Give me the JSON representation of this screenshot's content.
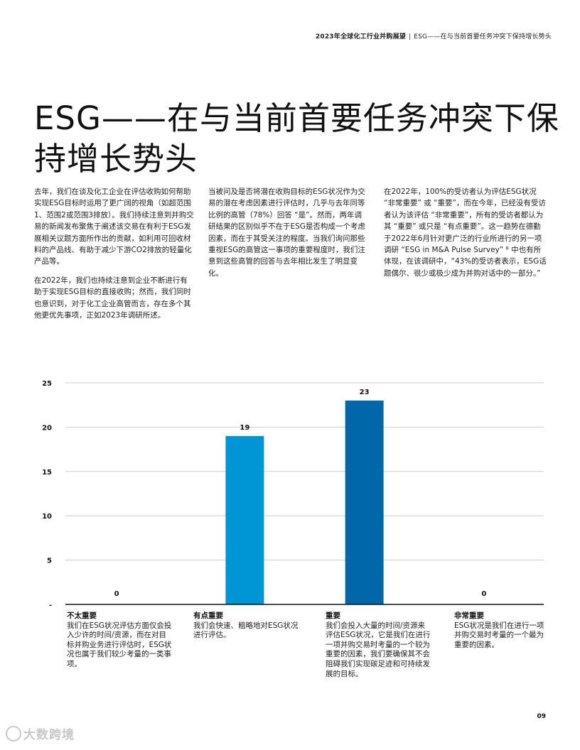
{
  "header": {
    "report": "2023年全球化工行业并购展望",
    "separator": "|",
    "section": "ESG——在与当前首要任务冲突下保持增长势头"
  },
  "title": "ESG——在与当前首要任务冲突下保持增长势头",
  "columns": [
    [
      "去年，我们在谈及化工企业在评估收购如何帮助实现ESG目标时运用了更广阔的视角（如超范围1、范围2或范围3排放）。我们持续注意到并购交易的新闻发布聚焦于阐述该交易在有利于ESG发展相关议题方面所作出的贡献，如利用可回收材料的产品线、有助于减少下游CO2排放的轻量化产品等。",
      "在2022年，我们也持续注意到企业不断进行有助于实现ESG目标的直接收购；然而，我们同时也意识到，对于化工企业高管而言，存在多个其他更优先事项，正如2023年调研所述。"
    ],
    [
      "当被问及是否将潜在收购目标的ESG状况作为交易的潜在考虑因素进行评估时，几乎与去年同等比例的高管（78%）回答 “是”。然而，两年调研结果的区别似乎不在于ESG是否构成一个考虑因素，而在于其受关注的程度。当我们询问那些重视ESG的高管这一事项的重要程度时，我们注意到这些高管的回答与去年相比发生了明显变化。"
    ],
    [
      "在2022年，100%的受访者认为评估ESG状况 “非常重要” 或 “重要”，而在今年，已经没有受访者认为该评估 “非常重要”，所有的受访者都认为其 “重要” 或只是 “有点重要”。这一趋势在德勤于2022年6月针对更广泛的行业所进行的另一项调研 “ESG in M&A Pulse Survey” ⁸ 中也有所体现，在该调研中，“43%的受访者表示，ESG话题偶尔、很少或极少成为并购对话中的一部分。”"
    ]
  ],
  "chart_data": {
    "type": "bar",
    "categories": [
      "不太重要",
      "有点重要",
      "重要",
      "非常重要"
    ],
    "values": [
      0,
      19,
      23,
      0
    ],
    "value_labels": [
      "0",
      "19",
      "23",
      "0"
    ],
    "ylim": [
      0,
      25
    ],
    "yticks": [
      "25",
      "20",
      "15",
      "10",
      "5",
      "-"
    ],
    "grid": true,
    "bar_colors": [
      "#0096d6",
      "#0096d6",
      "#0068a8",
      "#0068a8"
    ],
    "category_descriptions": [
      "我们在ESG状况评估方面仅会投入少许的时间/资源，而在对目标并购业务进行评估时，ESG状况也属于我们较少考量的一类事项。",
      "我们会快速、粗略地对ESG状况进行评估。",
      "我们会投入大量的时间/资源来评估ESG状况，它是我们在进行一项并购交易时考量的一个较为重要的因素，我们要确保其不会阻碍我们实现碳足迹和可持续发展的目标。",
      "ESG状况是我们在进行一项并购交易时考量的一个最为重要的因素。"
    ]
  },
  "colors": {
    "bar_light": "#0096d6",
    "bar_dark": "#0068a8",
    "grid": "#cfcfcf",
    "axis": "#111111"
  },
  "page_number": "09",
  "watermark": "大数跨境"
}
